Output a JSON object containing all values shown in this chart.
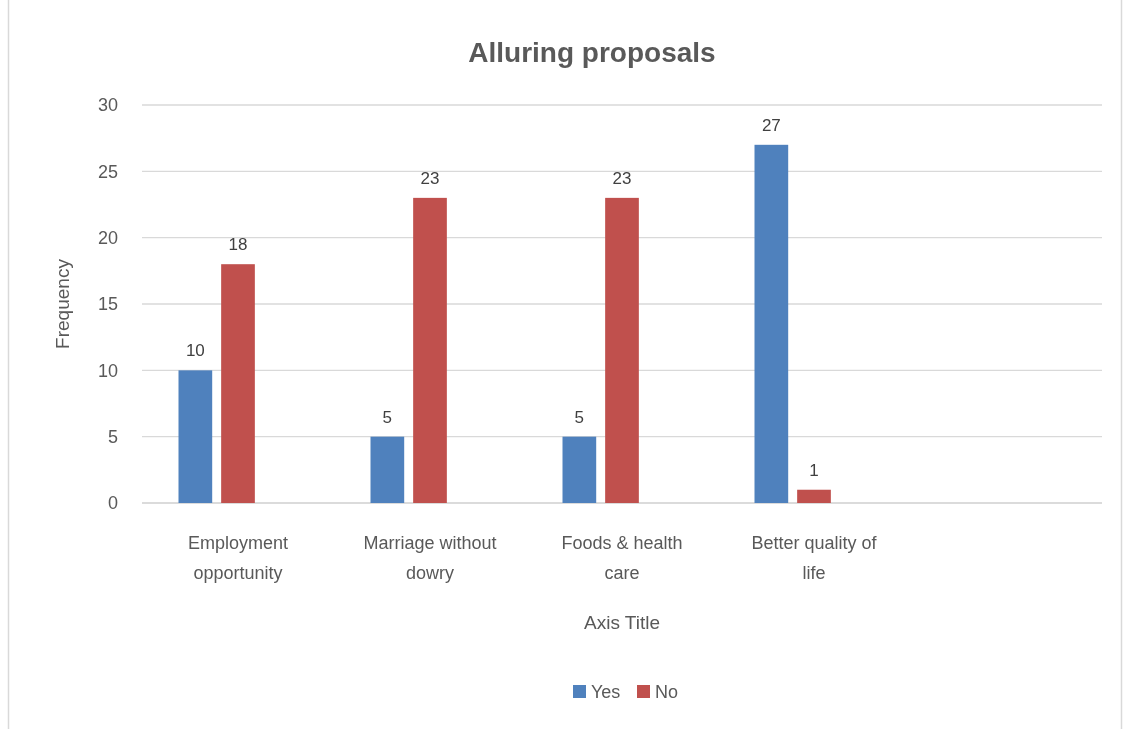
{
  "chart_data": {
    "type": "bar",
    "title": "Alluring proposals",
    "xlabel": "Axis Title",
    "ylabel": "Frequency",
    "categories": [
      "Employment opportunity",
      "Marriage without dowry",
      "Foods & health care",
      "Better quality of life",
      null
    ],
    "series": [
      {
        "name": "Yes",
        "color": "#4f81bd",
        "values": [
          10,
          5,
          5,
          27,
          null
        ]
      },
      {
        "name": "No",
        "color": "#c0504d",
        "values": [
          18,
          23,
          23,
          1,
          null
        ]
      }
    ],
    "ylim": [
      0,
      30
    ],
    "yticks": [
      0,
      5,
      10,
      15,
      20,
      25,
      30
    ],
    "grid": "y",
    "legend": "bottom",
    "data_labels": true
  }
}
